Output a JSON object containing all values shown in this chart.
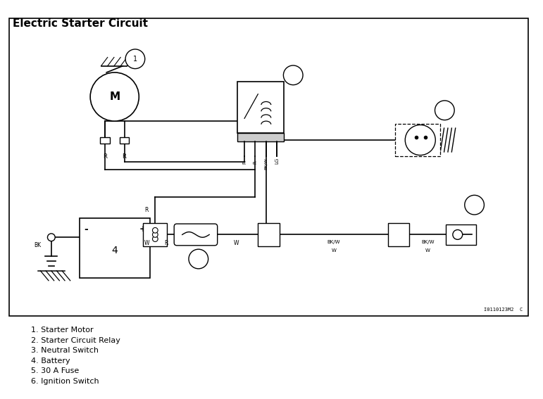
{
  "title": "Electric Starter Circuit",
  "bg_color": "#ffffff",
  "line_color": "#000000",
  "legend_items": [
    "1. Starter Motor",
    "2. Starter Circuit Relay",
    "3. Neutral Switch",
    "4. Battery",
    "5. 30 A Fuse",
    "6. Ignition Switch"
  ],
  "watermark": "I0110123M2  C",
  "label_fontsize": 8,
  "title_fontsize": 11
}
